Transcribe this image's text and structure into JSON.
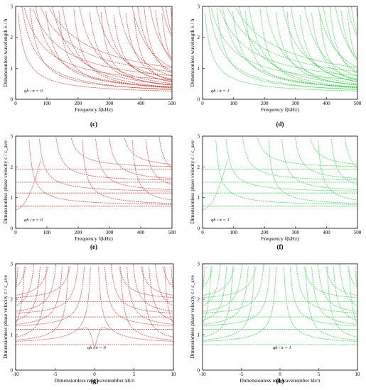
{
  "colors": {
    "red": "#c0392b",
    "green": "#2ecc40"
  },
  "chart_data": [
    {
      "panel": "(c)",
      "type": "line",
      "color": "#c0392b",
      "xlabel": "Frequency  f(kHz)",
      "ylabel": "Dimensionless wavelength  λ / h",
      "annotation": "qh / π = 0",
      "xlim": [
        0,
        500
      ],
      "ylim": [
        0,
        3
      ],
      "xticks": [
        "0",
        "100",
        "200",
        "300",
        "400",
        "500"
      ],
      "yticks": [
        "0",
        "1",
        "2",
        "3"
      ],
      "grid": false
    },
    {
      "panel": "(d)",
      "type": "line",
      "color": "#2ecc40",
      "xlabel": "Frequency  f(kHz)",
      "ylabel": "Dimensionless wavelength  λ / h",
      "annotation": "qh / π = 1",
      "xlim": [
        0,
        500
      ],
      "ylim": [
        0,
        3
      ],
      "xticks": [
        "0",
        "100",
        "200",
        "300",
        "400",
        "500"
      ],
      "yticks": [
        "0",
        "1",
        "2",
        "3"
      ],
      "grid": false
    },
    {
      "panel": "(e)",
      "type": "line",
      "color": "#c0392b",
      "xlabel": "Frequency  f(kHz)",
      "ylabel": "Dimensionless phase velocity  c / c_ave",
      "annotation": "qh / π = 0",
      "xlim": [
        0,
        500
      ],
      "ylim": [
        0,
        3
      ],
      "xticks": [
        "0",
        "100",
        "200",
        "300",
        "400",
        "500"
      ],
      "yticks": [
        "0",
        "1",
        "2",
        "3"
      ],
      "horizontal_levels": [
        0.72,
        1.15,
        1.5,
        1.93
      ],
      "grid": false
    },
    {
      "panel": "(f)",
      "type": "line",
      "color": "#2ecc40",
      "xlabel": "Frequency  f(kHz)",
      "ylabel": "Dimensionless phase velocity  c / c_ave",
      "annotation": "qh / π = 1",
      "xlim": [
        0,
        500
      ],
      "ylim": [
        0,
        3
      ],
      "xticks": [
        "0",
        "100",
        "200",
        "300",
        "400",
        "500"
      ],
      "yticks": [
        "0",
        "1",
        "2",
        "3"
      ],
      "horizontal_levels": [
        0.72,
        1.15,
        1.5,
        1.93
      ],
      "grid": false
    },
    {
      "panel": "(g)",
      "type": "line",
      "color": "#c0392b",
      "xlabel": "Dimensionless real wavenumber  kh/π",
      "ylabel": "Dimensionless phase velocity  c / c_ave",
      "annotation": "qh / π = 0",
      "xlim": [
        -10,
        10
      ],
      "ylim": [
        0,
        3
      ],
      "xticks": [
        "-10",
        "-5",
        "0",
        "5",
        "10"
      ],
      "yticks": [
        "0",
        "1",
        "2",
        "3"
      ],
      "horizontal_levels": [
        0.72,
        1.15,
        1.5,
        1.93
      ],
      "grid": false
    },
    {
      "panel": "(h)",
      "type": "line",
      "color": "#2ecc40",
      "xlabel": "Dimensionless real wavenumber  kh/π",
      "ylabel": "Dimensionless phase velocity  c / c_ave",
      "annotation": "qh / π = 1",
      "xlim": [
        -10,
        10
      ],
      "ylim": [
        0,
        3
      ],
      "xticks": [
        "-10",
        "-5",
        "0",
        "5",
        "10"
      ],
      "yticks": [
        "0",
        "1",
        "2",
        "3"
      ],
      "horizontal_levels": [
        0.72,
        1.15,
        1.5,
        1.93
      ],
      "grid": false
    }
  ]
}
